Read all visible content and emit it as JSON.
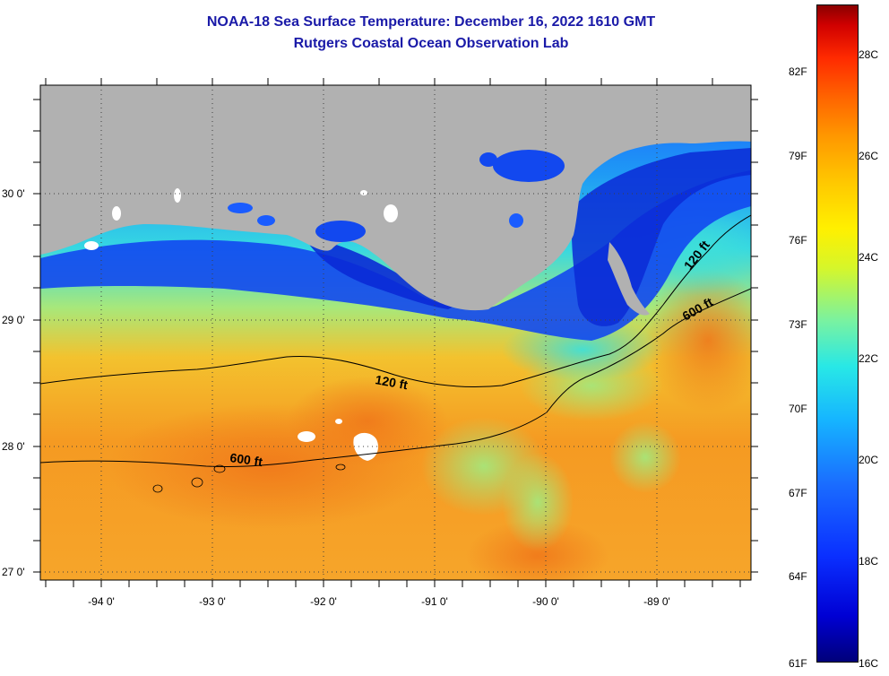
{
  "title": {
    "line1": "NOAA-18 Sea Surface Temperature:  December 16, 2022 1610 GMT",
    "line2": "Rutgers Coastal Ocean Observation Lab"
  },
  "map": {
    "lat_labels": [
      "30 0'",
      "29 0'",
      "28 0'",
      "27 0'"
    ],
    "lon_labels": [
      "-94 0'",
      "-93 0'",
      "-92 0'",
      "-91 0'",
      "-90 0'",
      "-89 0'"
    ],
    "contours": {
      "c120_a": "120 ft",
      "c120_b": "120 ft",
      "c600_a": "600 ft",
      "c600_b": "600 ft"
    },
    "colors": {
      "land": "#b1b1b1",
      "cloud": "#ffffff",
      "coast_water": "#0d3fe8",
      "mid_water": "#22d6ea",
      "warm_water": "#f39a1a"
    }
  },
  "colorbar": {
    "fahrenheit": [
      "82F",
      "79F",
      "76F",
      "73F",
      "70F",
      "67F",
      "64F",
      "61F"
    ],
    "celsius": [
      "28C",
      "26C",
      "24C",
      "22C",
      "20C",
      "18C",
      "16C"
    ]
  }
}
